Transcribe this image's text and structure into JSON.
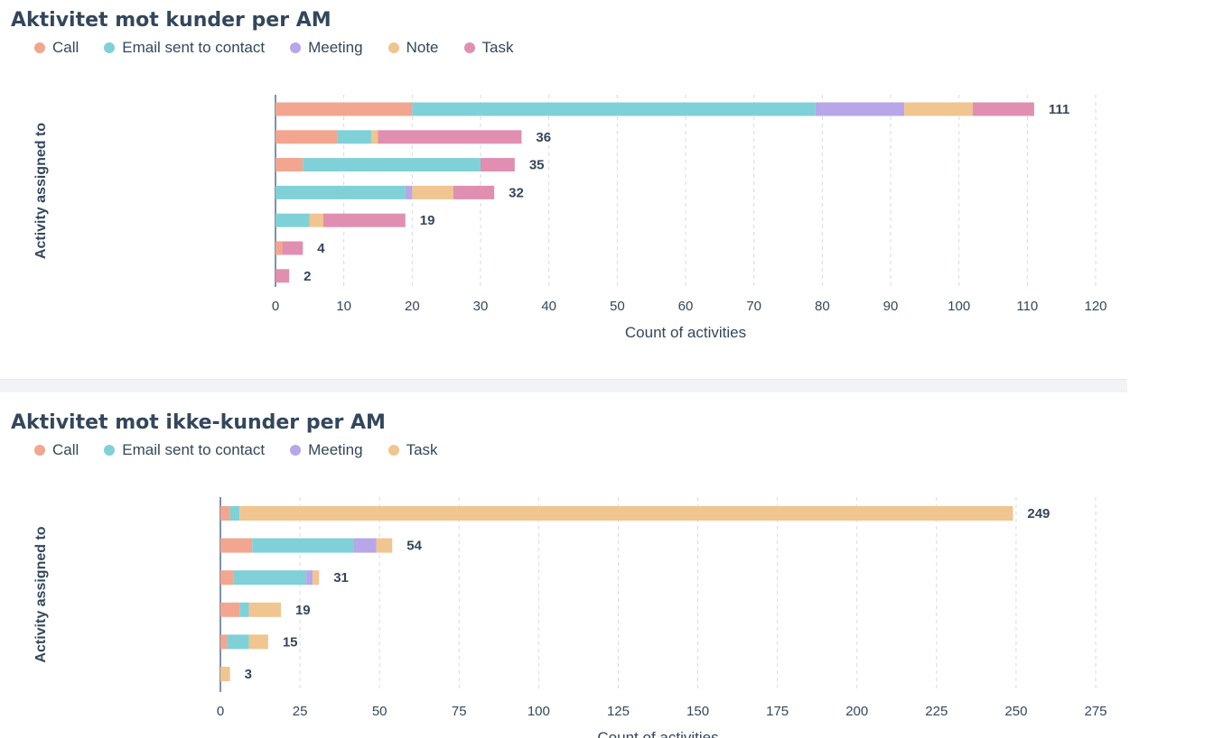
{
  "chart_data": [
    {
      "type": "bar",
      "orientation": "horizontal",
      "stacked": true,
      "title": "Aktivitet mot kunder per AM",
      "xlabel": "Count of activities",
      "ylabel": "Activity assigned to",
      "xlim": [
        0,
        120
      ],
      "xticks": [
        0,
        10,
        20,
        30,
        40,
        50,
        60,
        70,
        80,
        90,
        100,
        110,
        120
      ],
      "grid": true,
      "legend_position": "top-left",
      "categories": [
        "",
        "",
        "",
        "",
        "",
        "",
        ""
      ],
      "totals": [
        111,
        36,
        35,
        32,
        19,
        4,
        2
      ],
      "series": [
        {
          "name": "Call",
          "color": "#f2a68f",
          "values": [
            20,
            9,
            4,
            0,
            0,
            1,
            0
          ]
        },
        {
          "name": "Email sent to contact",
          "color": "#7fd1d7",
          "values": [
            59,
            5,
            26,
            19,
            5,
            0,
            0
          ]
        },
        {
          "name": "Meeting",
          "color": "#b7a6e8",
          "values": [
            13,
            0,
            0,
            1,
            0,
            0,
            0
          ]
        },
        {
          "name": "Note",
          "color": "#f0c58f",
          "values": [
            10,
            1,
            0,
            6,
            2,
            0,
            0
          ]
        },
        {
          "name": "Task",
          "color": "#e08fb0",
          "values": [
            9,
            21,
            5,
            6,
            12,
            3,
            2
          ]
        }
      ]
    },
    {
      "type": "bar",
      "orientation": "horizontal",
      "stacked": true,
      "title": "Aktivitet mot ikke-kunder per AM",
      "xlabel": "Count of activities",
      "ylabel": "Activity assigned to",
      "xlim": [
        0,
        275
      ],
      "xticks": [
        0,
        25,
        50,
        75,
        100,
        125,
        150,
        175,
        200,
        225,
        250,
        275
      ],
      "grid": true,
      "legend_position": "top-left",
      "categories": [
        "",
        "",
        "",
        "",
        "",
        ""
      ],
      "totals": [
        249,
        54,
        31,
        19,
        15,
        3
      ],
      "series": [
        {
          "name": "Call",
          "color": "#f2a68f",
          "values": [
            3,
            10,
            4,
            6,
            2,
            0
          ]
        },
        {
          "name": "Email sent to contact",
          "color": "#7fd1d7",
          "values": [
            3,
            32,
            23,
            3,
            7,
            0
          ]
        },
        {
          "name": "Meeting",
          "color": "#b7a6e8",
          "values": [
            0,
            7,
            2,
            0,
            0,
            0
          ]
        },
        {
          "name": "Task",
          "color": "#f0c58f",
          "values": [
            243,
            5,
            2,
            10,
            6,
            3
          ]
        }
      ]
    }
  ]
}
